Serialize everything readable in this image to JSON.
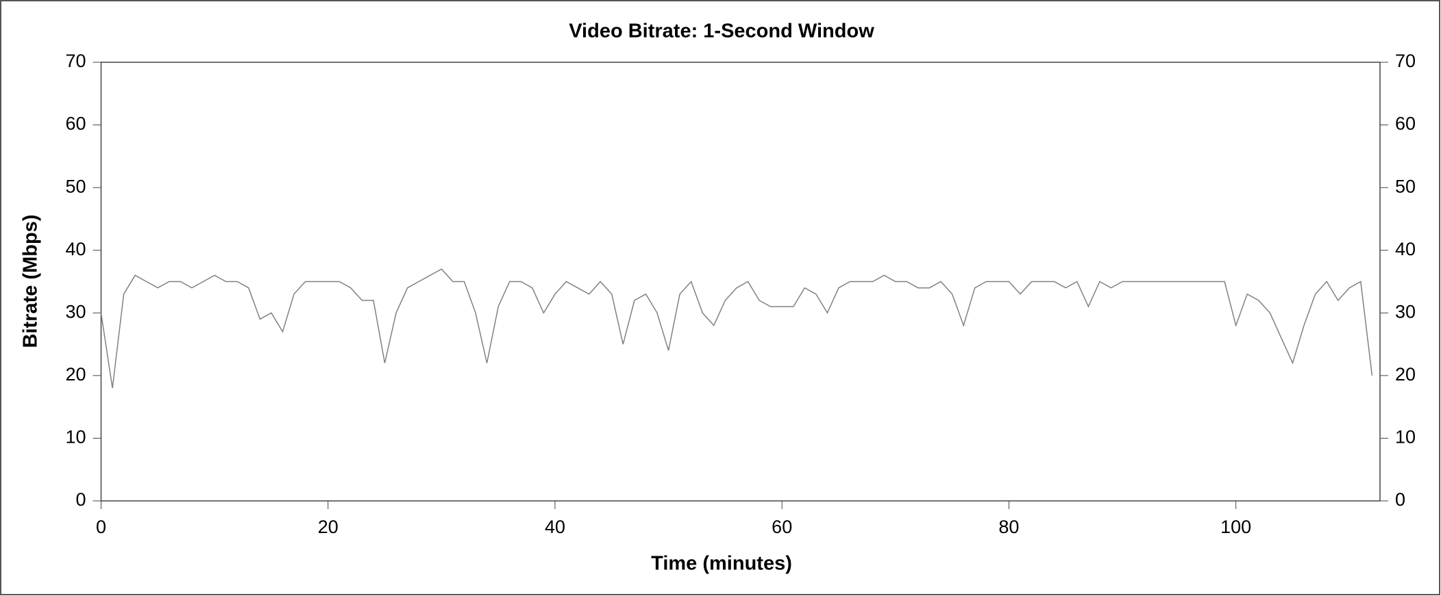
{
  "chart_data": {
    "type": "line",
    "title": "Video Bitrate: 1-Second Window",
    "x_label": "Time (minutes)",
    "y_label": "Bitrate (Mbps)",
    "x": [
      0,
      1,
      2,
      3,
      4,
      5,
      6,
      7,
      8,
      9,
      10,
      11,
      12,
      13,
      14,
      15,
      16,
      17,
      18,
      19,
      20,
      21,
      22,
      23,
      24,
      25,
      26,
      27,
      28,
      29,
      30,
      31,
      32,
      33,
      34,
      35,
      36,
      37,
      38,
      39,
      40,
      41,
      42,
      43,
      44,
      45,
      46,
      47,
      48,
      49,
      50,
      51,
      52,
      53,
      54,
      55,
      56,
      57,
      58,
      59,
      60,
      61,
      62,
      63,
      64,
      65,
      66,
      67,
      68,
      69,
      70,
      71,
      72,
      73,
      74,
      75,
      76,
      77,
      78,
      79,
      80,
      81,
      82,
      83,
      84,
      85,
      86,
      87,
      88,
      89,
      90,
      91,
      92,
      93,
      94,
      95,
      96,
      97,
      98,
      99,
      100,
      101,
      102,
      103,
      104,
      105,
      106,
      107,
      108,
      109,
      110,
      111,
      112
    ],
    "series": [
      {
        "color": "#808080",
        "values": [
          30,
          18,
          33,
          36,
          35,
          34,
          35,
          35,
          34,
          35,
          36,
          35,
          35,
          34,
          29,
          30,
          27,
          33,
          35,
          35,
          35,
          35,
          34,
          32,
          32,
          22,
          30,
          34,
          35,
          36,
          37,
          35,
          35,
          30,
          22,
          31,
          35,
          35,
          34,
          30,
          33,
          35,
          34,
          33,
          35,
          33,
          25,
          32,
          33,
          30,
          24,
          33,
          35,
          30,
          28,
          32,
          34,
          35,
          32,
          31,
          31,
          31,
          34,
          33,
          30,
          34,
          35,
          35,
          35,
          36,
          35,
          35,
          34,
          34,
          35,
          33,
          28,
          34,
          35,
          35,
          35,
          33,
          35,
          35,
          35,
          34,
          35,
          31,
          35,
          34,
          35,
          35,
          35,
          35,
          35,
          35,
          35,
          35,
          35,
          35,
          28,
          33,
          32,
          30,
          26,
          22,
          28,
          33,
          35,
          32,
          34,
          35,
          20
        ]
      }
    ],
    "xlim": [
      0,
      112.7
    ],
    "xticks": [
      0,
      20,
      40,
      60,
      80,
      100
    ],
    "ylim": [
      0,
      70
    ],
    "yticks": [
      0,
      10,
      20,
      30,
      40,
      50,
      60,
      70
    ]
  }
}
